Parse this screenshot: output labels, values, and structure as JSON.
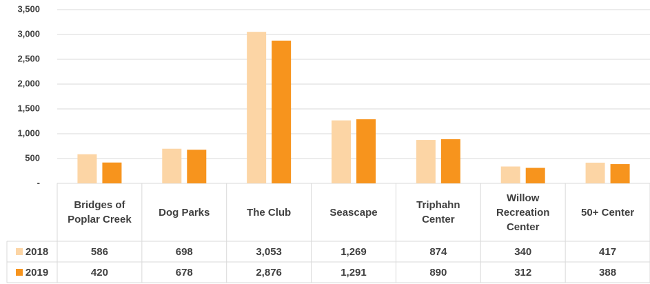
{
  "chart_data": {
    "type": "bar",
    "categories": [
      "Bridges of Poplar Creek",
      "Dog Parks",
      "The Club",
      "Seascape",
      "Triphahn Center",
      "Willow Recreation Center",
      "50+ Center"
    ],
    "series": [
      {
        "name": "2018",
        "color": "#fcd5a5",
        "values": [
          586,
          698,
          3053,
          1269,
          874,
          340,
          417
        ],
        "value_labels": [
          "586",
          "698",
          "3,053",
          "1,269",
          "874",
          "340",
          "417"
        ]
      },
      {
        "name": "2019",
        "color": "#f7941d",
        "values": [
          420,
          678,
          2876,
          1291,
          890,
          312,
          388
        ],
        "value_labels": [
          "420",
          "678",
          "2,876",
          "1,291",
          "890",
          "312",
          "388"
        ]
      }
    ],
    "ylim": [
      0,
      3500
    ],
    "yticks": [
      {
        "value": 0,
        "label": "-"
      },
      500,
      {
        "value": 1000,
        "label": "1,000"
      },
      {
        "value": 1500,
        "label": "1,500"
      },
      {
        "value": 2000,
        "label": "2,000"
      },
      {
        "value": 2500,
        "label": "2,500"
      },
      {
        "value": 3000,
        "label": "3,000"
      },
      {
        "value": 3500,
        "label": "3,500"
      }
    ],
    "grid": true
  }
}
